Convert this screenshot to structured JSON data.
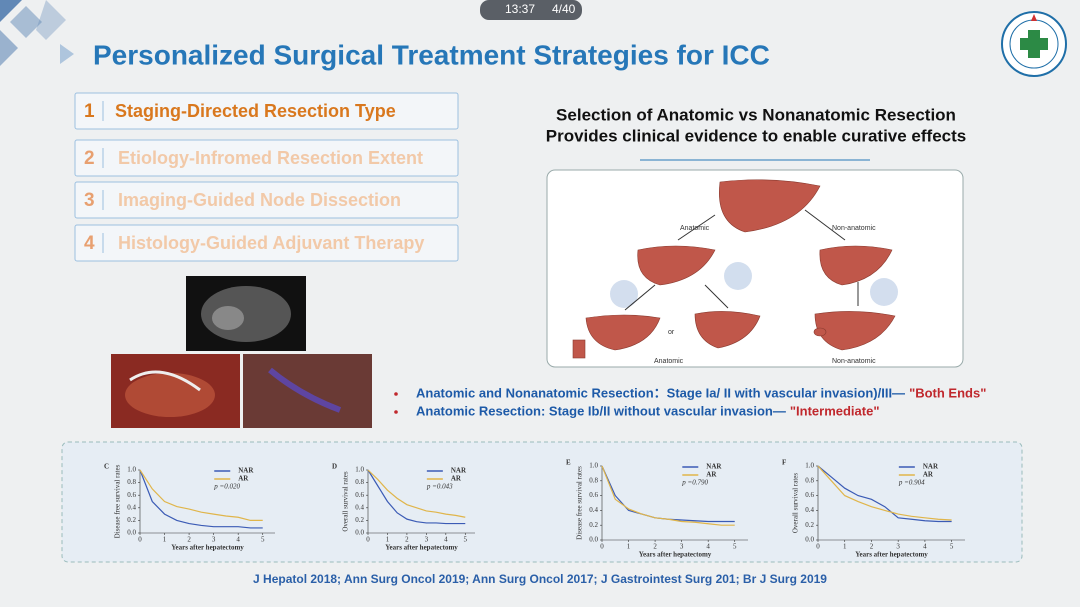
{
  "status_bar": {
    "time": "13:37",
    "page": "4/40"
  },
  "title": "Personalized Surgical Treatment Strategies for ICC",
  "menu": [
    {
      "number": "1",
      "label": "Staging-Directed Resection Type"
    },
    {
      "number": "2",
      "label": "Etiology-Infromed Resection Extent"
    },
    {
      "number": "3",
      "label": "Imaging-Guided Node Dissection"
    },
    {
      "number": "4",
      "label": "Histology-Guided Adjuvant Therapy"
    }
  ],
  "figure_heading": [
    "Selection of Anatomic vs Nonanatomic Resection",
    "Provides clinical evidence to enable curative effects"
  ],
  "diagram_labels": {
    "anatomic": "Anatomic",
    "non_anatomic": "Non-anatomic",
    "or": "or",
    "anatomic_result": "Anatomic",
    "non_anatomic_result": "Non-anatomic"
  },
  "bullets": [
    {
      "text": "Anatomic and Nonanatomic Resection：Stage Ia/ II with vascular invasion)/III—",
      "emphasis": "\"Both Ends\""
    },
    {
      "text": "Anatomic Resection: Stage Ib/II without vascular invasion—",
      "emphasis": "\"Intermediate\""
    }
  ],
  "km_axes": {
    "x_label": "Years after hepatectomy",
    "xlim": [
      0,
      5.5
    ],
    "ylim": [
      0,
      1
    ],
    "xticks": [
      0,
      1,
      2,
      3,
      4,
      5
    ],
    "yticks": [
      {
        "value": 0,
        "label": "0.0"
      },
      {
        "value": 0.2,
        "label": "0.2"
      },
      {
        "value": 0.4,
        "label": "0.4"
      },
      {
        "value": 0.6,
        "label": "0.6"
      },
      {
        "value": 0.8,
        "label": "0.8"
      },
      {
        "value": 1,
        "label": "1.0"
      }
    ],
    "x": [
      0,
      0.5,
      1,
      1.5,
      2,
      2.5,
      3,
      3.5,
      4,
      4.5,
      5
    ]
  },
  "km_plots": [
    {
      "panel": "C",
      "y_label": "Disease free survival rates",
      "p_value": "p =0.020",
      "series": [
        {
          "name": "NAR",
          "color": "#3b5bb5",
          "values": [
            1,
            0.5,
            0.3,
            0.2,
            0.15,
            0.12,
            0.1,
            0.1,
            0.1,
            0.08,
            0.08
          ]
        },
        {
          "name": "AR",
          "color": "#e0b54a",
          "values": [
            1,
            0.7,
            0.5,
            0.42,
            0.38,
            0.33,
            0.3,
            0.27,
            0.25,
            0.2,
            0.2
          ]
        }
      ]
    },
    {
      "panel": "D",
      "y_label": "Overall survival rates",
      "p_value": "p =0.043",
      "series": [
        {
          "name": "NAR",
          "color": "#3b5bb5",
          "values": [
            1,
            0.75,
            0.5,
            0.32,
            0.22,
            0.18,
            0.16,
            0.16,
            0.15,
            0.15,
            0.15
          ]
        },
        {
          "name": "AR",
          "color": "#e0b54a",
          "values": [
            1,
            0.85,
            0.68,
            0.55,
            0.45,
            0.4,
            0.35,
            0.33,
            0.3,
            0.28,
            0.25
          ]
        }
      ]
    },
    {
      "panel": "E",
      "y_label": "Disease free survival rates",
      "p_value": "p =0.790",
      "series": [
        {
          "name": "NAR",
          "color": "#3b5bb5",
          "values": [
            1,
            0.6,
            0.4,
            0.35,
            0.3,
            0.28,
            0.27,
            0.26,
            0.25,
            0.25,
            0.25
          ]
        },
        {
          "name": "AR",
          "color": "#e0b54a",
          "values": [
            1,
            0.55,
            0.42,
            0.35,
            0.3,
            0.28,
            0.25,
            0.24,
            0.22,
            0.2,
            0.2
          ]
        }
      ]
    },
    {
      "panel": "F",
      "y_label": "Overall survival rates",
      "p_value": "p =0.904",
      "series": [
        {
          "name": "NAR",
          "color": "#3b5bb5",
          "values": [
            1,
            0.85,
            0.7,
            0.6,
            0.55,
            0.45,
            0.3,
            0.28,
            0.26,
            0.25,
            0.25
          ]
        },
        {
          "name": "AR",
          "color": "#e0b54a",
          "values": [
            1,
            0.8,
            0.6,
            0.52,
            0.45,
            0.4,
            0.35,
            0.32,
            0.3,
            0.28,
            0.27
          ]
        }
      ]
    }
  ],
  "references": "J Hepatol 2018; Ann Surg Oncol 2019;  Ann Surg Oncol 2017;  J Gastrointest Surg 201;  Br J Surg 2019"
}
